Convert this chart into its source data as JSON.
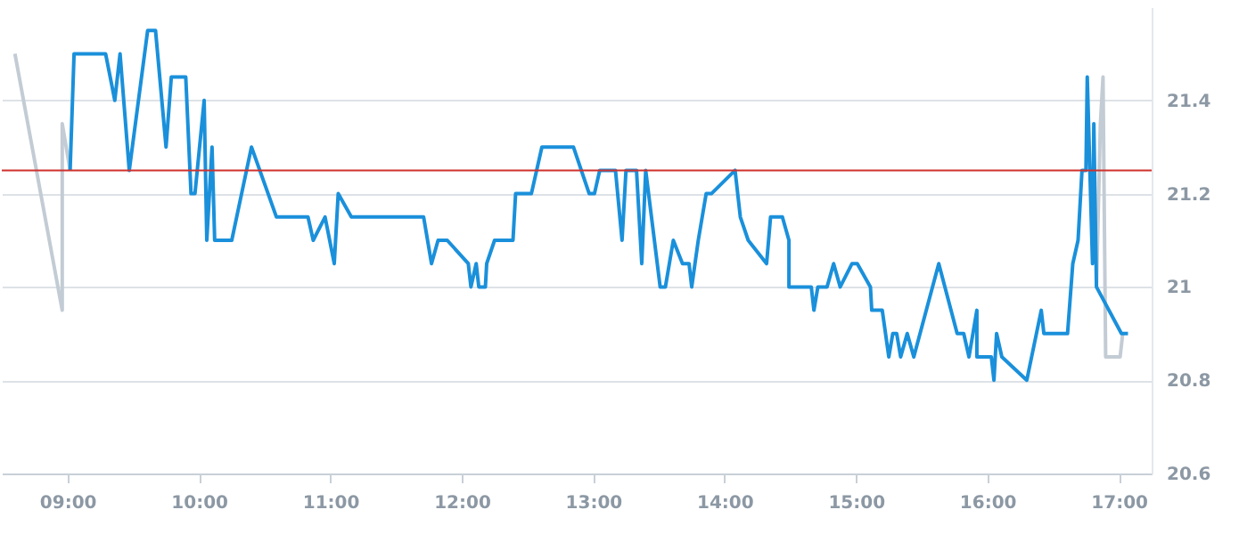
{
  "chart_data": {
    "type": "line",
    "xlim": [
      8.5,
      17.25
    ],
    "ylim": [
      20.6,
      21.6
    ],
    "xticks": [
      {
        "value": 9,
        "label": "09:00"
      },
      {
        "value": 10,
        "label": "10:00"
      },
      {
        "value": 11,
        "label": "11:00"
      },
      {
        "value": 12,
        "label": "12:00"
      },
      {
        "value": 13,
        "label": "13:00"
      },
      {
        "value": 14,
        "label": "14:00"
      },
      {
        "value": 15,
        "label": "15:00"
      },
      {
        "value": 16,
        "label": "16:00"
      },
      {
        "value": 17,
        "label": "17:00"
      }
    ],
    "yticks": [
      20.6,
      20.8,
      21,
      21.2,
      21.4
    ],
    "grid": "y",
    "line_style": "solid",
    "ref_lines": [
      {
        "axis": "y",
        "value": 21.25,
        "color": "#d0312d"
      }
    ],
    "series": [
      {
        "color": "#c3ccd4",
        "x": [
          8.6,
          8.96,
          8.96,
          9.02
        ],
        "values": [
          21.5,
          20.95,
          21.35,
          21.25
        ]
      },
      {
        "color": "#c3ccd4",
        "x": [
          16.83,
          16.86,
          16.88,
          16.9,
          17.01,
          17.03
        ],
        "values": [
          21.0,
          21.35,
          21.45,
          20.85,
          20.85,
          20.9
        ]
      },
      {
        "color": "#1a90db",
        "x": [
          9.02,
          9.05,
          9.29,
          9.36,
          9.4,
          9.47,
          9.61,
          9.67,
          9.75,
          9.79,
          9.9,
          9.94,
          9.97,
          10.04,
          10.06,
          10.1,
          10.12,
          10.25,
          10.4,
          10.59,
          10.83,
          10.87,
          10.96,
          11.03,
          11.06,
          11.16,
          11.71,
          11.77,
          11.82,
          11.89,
          12.05,
          12.07,
          12.11,
          12.13,
          12.18,
          12.19,
          12.25,
          12.39,
          12.41,
          12.53,
          12.61,
          12.85,
          12.97,
          13.01,
          13.05,
          13.17,
          13.22,
          13.25,
          13.33,
          13.37,
          13.4,
          13.51,
          13.55,
          13.61,
          13.68,
          13.73,
          13.75,
          13.8,
          13.86,
          13.9,
          14.08,
          14.12,
          14.18,
          14.32,
          14.35,
          14.44,
          14.49,
          14.49,
          14.66,
          14.68,
          14.71,
          14.78,
          14.83,
          14.88,
          14.97,
          15.01,
          15.11,
          15.12,
          15.2,
          15.25,
          15.28,
          15.31,
          15.34,
          15.39,
          15.44,
          15.63,
          15.77,
          15.82,
          15.86,
          15.92,
          15.92,
          16.03,
          16.05,
          16.07,
          16.11,
          16.3,
          16.41,
          16.43,
          16.61,
          16.65,
          16.69,
          16.72,
          16.75,
          16.76,
          16.78,
          16.8,
          16.81,
          16.83,
          17.02,
          17.07
        ],
        "values": [
          21.25,
          21.5,
          21.5,
          21.4,
          21.5,
          21.25,
          21.55,
          21.55,
          21.3,
          21.45,
          21.45,
          21.2,
          21.2,
          21.4,
          21.1,
          21.3,
          21.1,
          21.1,
          21.3,
          21.15,
          21.15,
          21.1,
          21.15,
          21.05,
          21.2,
          21.15,
          21.15,
          21.05,
          21.1,
          21.1,
          21.05,
          21.0,
          21.05,
          21.0,
          21.0,
          21.05,
          21.1,
          21.1,
          21.2,
          21.2,
          21.3,
          21.3,
          21.2,
          21.2,
          21.25,
          21.25,
          21.1,
          21.25,
          21.25,
          21.05,
          21.25,
          21.0,
          21.0,
          21.1,
          21.05,
          21.05,
          21.0,
          21.1,
          21.2,
          21.2,
          21.25,
          21.15,
          21.1,
          21.05,
          21.15,
          21.15,
          21.1,
          21.0,
          21.0,
          20.95,
          21.0,
          21.0,
          21.05,
          21.0,
          21.05,
          21.05,
          21.0,
          20.95,
          20.95,
          20.85,
          20.9,
          20.9,
          20.85,
          20.9,
          20.85,
          21.05,
          20.9,
          20.9,
          20.85,
          20.95,
          20.85,
          20.85,
          20.8,
          20.9,
          20.85,
          20.8,
          20.95,
          20.9,
          20.9,
          21.05,
          21.1,
          21.25,
          21.25,
          21.45,
          21.25,
          21.05,
          21.35,
          21.0,
          20.9,
          20.9
        ]
      }
    ]
  }
}
